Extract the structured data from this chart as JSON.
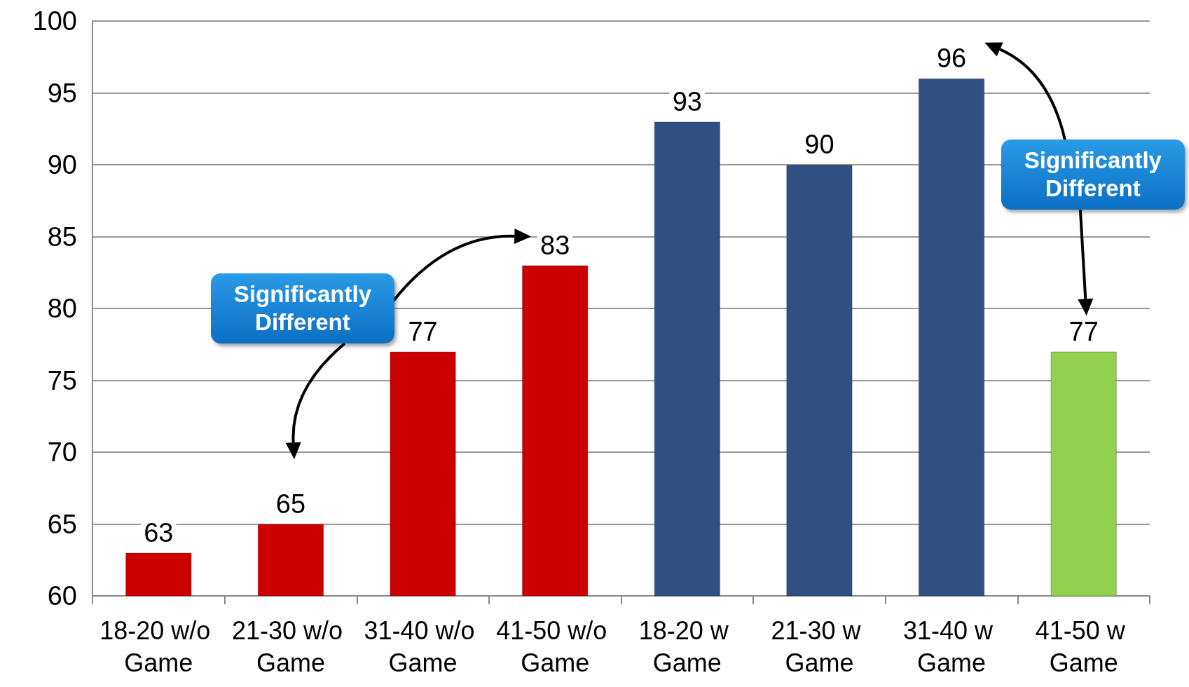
{
  "chart_data": {
    "type": "bar",
    "categories": [
      "18-20 w/o Game",
      "21-30 w/o Game",
      "31-40 w/o Game",
      "41-50 w/o Game",
      "18-20 w Game",
      "21-30 w Game",
      "31-40 w Game",
      "41-50 w Game"
    ],
    "values": [
      63,
      65,
      77,
      83,
      93,
      90,
      96,
      77
    ],
    "colors": [
      "#cc0000",
      "#cc0000",
      "#cc0000",
      "#cc0000",
      "#2f5080",
      "#2f5080",
      "#2f5080",
      "#92d050"
    ],
    "ylim": [
      60,
      100
    ],
    "yticks": [
      60,
      65,
      70,
      75,
      80,
      85,
      90,
      95,
      100
    ],
    "grid": "y",
    "data_labels": true,
    "annotations": [
      "Significantly Different",
      "Significantly Different"
    ]
  }
}
